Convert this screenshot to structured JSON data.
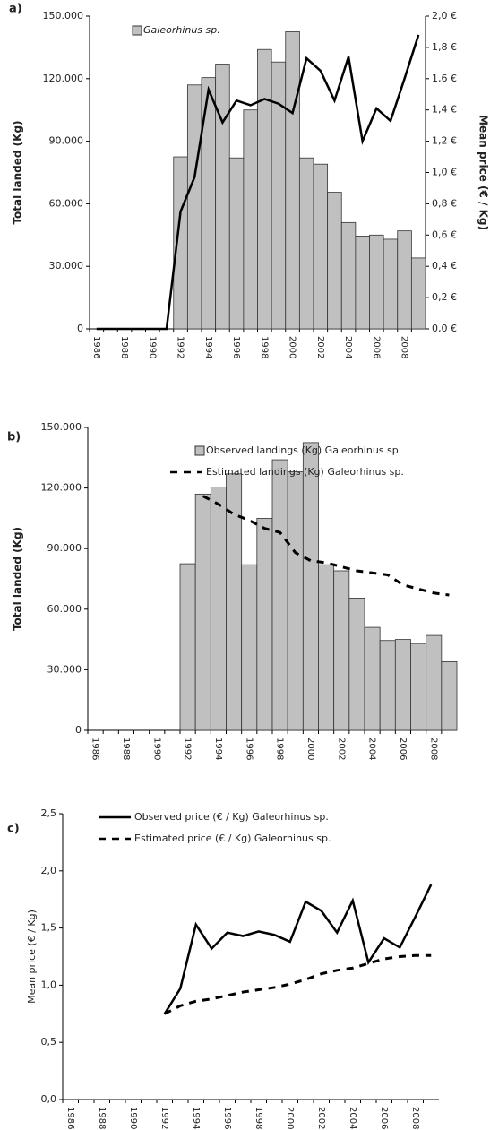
{
  "chart_data": [
    {
      "type": "bar",
      "label": "a)",
      "y_label": "Total landed (Kg)",
      "y2_label": "Mean price (€ / Kg)",
      "legend": "top",
      "categories": [
        "1986",
        null,
        "1988",
        null,
        "1990",
        null,
        "1992",
        null,
        "1994",
        null,
        "1996",
        null,
        "1998",
        null,
        "2000",
        null,
        "2002",
        null,
        "2004",
        null,
        "2006",
        null,
        "2008",
        null
      ],
      "series": [
        {
          "name": "Galeorhinus sp.",
          "type": "bar",
          "color": "#c0c0c0",
          "values": [
            0,
            0,
            0,
            0,
            0,
            0,
            82500,
            117000,
            120500,
            127000,
            82000,
            105000,
            134000,
            128000,
            142500,
            82000,
            79000,
            65500,
            51000,
            44500,
            45000,
            43000,
            47000,
            34000
          ]
        },
        {
          "type": "line",
          "axis": "y2",
          "color": "#000000",
          "values": [
            0,
            0,
            0,
            0,
            0,
            0,
            0.75,
            0.97,
            1.53,
            1.32,
            1.46,
            1.43,
            1.47,
            1.44,
            1.38,
            1.73,
            1.65,
            1.46,
            1.74,
            1.2,
            1.41,
            1.33,
            1.6,
            1.88
          ]
        }
      ],
      "ylim": [
        0,
        150000
      ],
      "yticks": [
        0,
        {
          "value": 30000,
          "label": "30.000"
        },
        {
          "value": 60000,
          "label": "60.000"
        },
        {
          "value": 90000,
          "label": "90.000"
        },
        {
          "value": 120000,
          "label": "120.000"
        },
        {
          "value": 150000,
          "label": "150.000"
        }
      ],
      "y2lim": [
        0,
        2
      ],
      "y2ticks": [
        {
          "value": 0,
          "label": "0,0 €"
        },
        {
          "value": 0.2,
          "label": "0,2 €"
        },
        {
          "value": 0.4,
          "label": "0,4 €"
        },
        {
          "value": 0.6,
          "label": "0,6 €"
        },
        {
          "value": 0.8,
          "label": "0,8 €"
        },
        {
          "value": 1,
          "label": "1,0 €"
        },
        {
          "value": 1.2,
          "label": "1,2 €"
        },
        {
          "value": 1.4,
          "label": "1,4 €"
        },
        {
          "value": 1.6,
          "label": "1,6 €"
        },
        {
          "value": 1.8,
          "label": "1,8 €"
        },
        {
          "value": 2,
          "label": "2,0 €"
        }
      ],
      "grid": false
    },
    {
      "type": "bar",
      "label": "b)",
      "y_label": "Total landed (Kg)",
      "legend": "top",
      "categories": [
        "1986",
        null,
        "1988",
        null,
        "1990",
        null,
        "1992",
        null,
        "1994",
        null,
        "1996",
        null,
        "1998",
        null,
        "2000",
        null,
        "2002",
        null,
        "2004",
        null,
        "2006",
        null,
        "2008",
        null
      ],
      "series": [
        {
          "name": "Observed landings (Kg) Galeorhinus sp.",
          "type": "bar",
          "color": "#c0c0c0",
          "values": [
            0,
            0,
            0,
            0,
            0,
            0,
            82500,
            117000,
            120500,
            127000,
            82000,
            105000,
            134000,
            128000,
            142500,
            82000,
            79000,
            65500,
            51000,
            44500,
            45000,
            43000,
            47000,
            34000
          ]
        },
        {
          "name": "Estimated landings (Kg) Galeorhinus sp.",
          "type": "line",
          "dashed": true,
          "color": "#000000",
          "values": [
            null,
            null,
            null,
            null,
            null,
            null,
            null,
            116000,
            112000,
            107000,
            104000,
            100000,
            98000,
            88000,
            84000,
            83000,
            81000,
            79000,
            78000,
            77000,
            72000,
            70000,
            68000,
            67000
          ]
        }
      ],
      "ylim": [
        0,
        150000
      ],
      "yticks": [
        0,
        {
          "value": 30000,
          "label": "30.000"
        },
        {
          "value": 60000,
          "label": "60.000"
        },
        {
          "value": 90000,
          "label": "90.000"
        },
        {
          "value": 120000,
          "label": "120.000"
        },
        {
          "value": 150000,
          "label": "150.000"
        }
      ],
      "grid": false
    },
    {
      "type": "line",
      "label": "c)",
      "y_label": "Mean price (€ / Kg)",
      "legend": "top",
      "categories": [
        "1986",
        null,
        "1988",
        null,
        "1990",
        null,
        "1992",
        null,
        "1994",
        null,
        "1996",
        null,
        "1998",
        null,
        "2000",
        null,
        "2002",
        null,
        "2004",
        null,
        "2006",
        null,
        "2008",
        null
      ],
      "series": [
        {
          "name": "Observed price (€ / Kg) Galeorhinus sp.",
          "type": "line",
          "color": "#000000",
          "values": [
            null,
            null,
            null,
            null,
            null,
            null,
            0.75,
            0.97,
            1.53,
            1.32,
            1.46,
            1.43,
            1.47,
            1.44,
            1.38,
            1.73,
            1.65,
            1.46,
            1.74,
            1.2,
            1.41,
            1.33,
            1.6,
            1.88
          ]
        },
        {
          "name": "Estimated price (€ / Kg) Galeorhinus sp.",
          "type": "line",
          "dashed": true,
          "color": "#000000",
          "values": [
            null,
            null,
            null,
            null,
            null,
            null,
            0.75,
            0.82,
            0.86,
            0.88,
            0.91,
            0.94,
            0.96,
            0.98,
            1.01,
            1.05,
            1.1,
            1.13,
            1.15,
            1.19,
            1.23,
            1.25,
            1.26,
            1.26
          ]
        }
      ],
      "ylim": [
        0,
        2.5
      ],
      "yticks": [
        {
          "value": 0,
          "label": "0,0"
        },
        {
          "value": 0.5,
          "label": "0,5"
        },
        {
          "value": 1,
          "label": "1,0"
        },
        {
          "value": 1.5,
          "label": "1,5"
        },
        {
          "value": 2,
          "label": "2,0"
        },
        {
          "value": 2.5,
          "label": "2,5"
        }
      ],
      "grid": false
    }
  ]
}
